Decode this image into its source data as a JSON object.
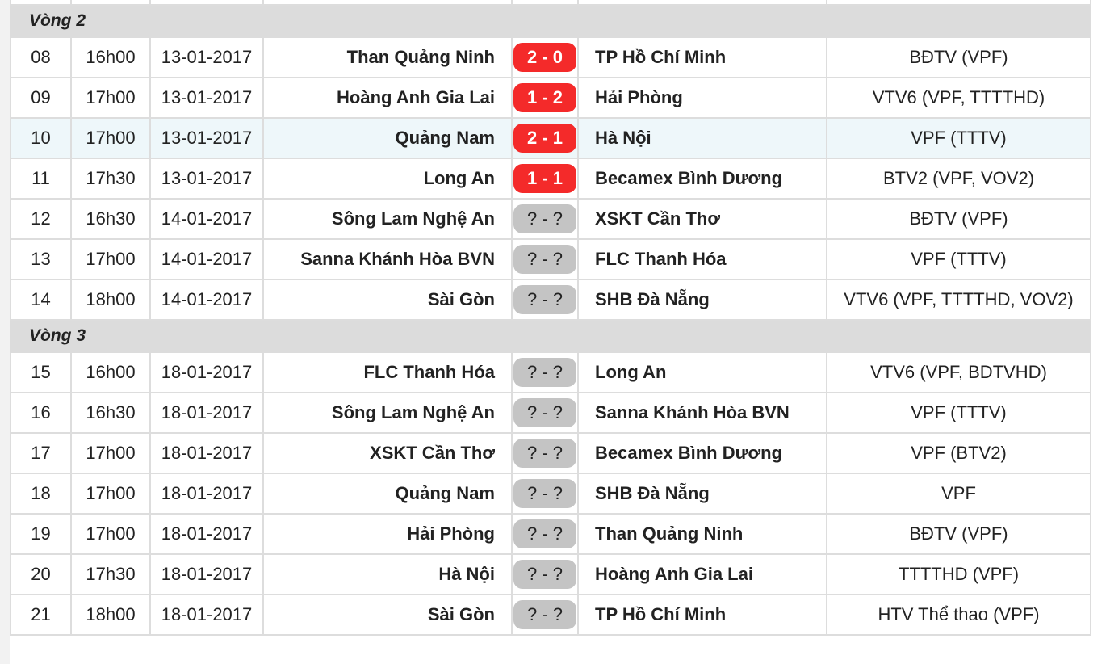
{
  "colors": {
    "played_badge": "#f42a2a",
    "pending_badge": "#c4c4c4",
    "round_header": "#dcdcdc",
    "highlight_row": "#eef7fa"
  },
  "rounds": [
    {
      "label": "Vòng 2",
      "matches": [
        {
          "no": "08",
          "time": "16h00",
          "date": "13-01-2017",
          "home": "Than Quảng Ninh",
          "score": "2 - 0",
          "played": true,
          "away": "TP Hồ Chí Minh",
          "tv": "BĐTV (VPF)"
        },
        {
          "no": "09",
          "time": "17h00",
          "date": "13-01-2017",
          "home": "Hoàng Anh Gia Lai",
          "score": "1 - 2",
          "played": true,
          "away": "Hải Phòng",
          "tv": "VTV6 (VPF, TTTTHD)"
        },
        {
          "no": "10",
          "time": "17h00",
          "date": "13-01-2017",
          "home": "Quảng Nam",
          "score": "2 - 1",
          "played": true,
          "away": "Hà Nội",
          "tv": "VPF (TTTV)",
          "highlighted": true
        },
        {
          "no": "11",
          "time": "17h30",
          "date": "13-01-2017",
          "home": "Long An",
          "score": "1 - 1",
          "played": true,
          "away": "Becamex Bình Dương",
          "tv": "BTV2 (VPF, VOV2)"
        },
        {
          "no": "12",
          "time": "16h30",
          "date": "14-01-2017",
          "home": "Sông Lam Nghệ An",
          "score": "? - ?",
          "played": false,
          "away": "XSKT Cần Thơ",
          "tv": "BĐTV (VPF)"
        },
        {
          "no": "13",
          "time": "17h00",
          "date": "14-01-2017",
          "home": "Sanna Khánh Hòa BVN",
          "score": "? - ?",
          "played": false,
          "away": "FLC Thanh Hóa",
          "tv": "VPF (TTTV)"
        },
        {
          "no": "14",
          "time": "18h00",
          "date": "14-01-2017",
          "home": "Sài Gòn",
          "score": "? - ?",
          "played": false,
          "away": "SHB Đà Nẵng",
          "tv": "VTV6 (VPF, TTTTHD, VOV2)"
        }
      ]
    },
    {
      "label": "Vòng 3",
      "matches": [
        {
          "no": "15",
          "time": "16h00",
          "date": "18-01-2017",
          "home": "FLC Thanh Hóa",
          "score": "? - ?",
          "played": false,
          "away": "Long An",
          "tv": "VTV6 (VPF, BDTVHD)"
        },
        {
          "no": "16",
          "time": "16h30",
          "date": "18-01-2017",
          "home": "Sông Lam Nghệ An",
          "score": "? - ?",
          "played": false,
          "away": "Sanna Khánh Hòa BVN",
          "tv": "VPF (TTTV)"
        },
        {
          "no": "17",
          "time": "17h00",
          "date": "18-01-2017",
          "home": "XSKT Cần Thơ",
          "score": "? - ?",
          "played": false,
          "away": "Becamex Bình Dương",
          "tv": "VPF (BTV2)"
        },
        {
          "no": "18",
          "time": "17h00",
          "date": "18-01-2017",
          "home": "Quảng Nam",
          "score": "? - ?",
          "played": false,
          "away": "SHB Đà Nẵng",
          "tv": "VPF"
        },
        {
          "no": "19",
          "time": "17h00",
          "date": "18-01-2017",
          "home": "Hải Phòng",
          "score": "? - ?",
          "played": false,
          "away": "Than Quảng Ninh",
          "tv": "BĐTV (VPF)"
        },
        {
          "no": "20",
          "time": "17h30",
          "date": "18-01-2017",
          "home": "Hà Nội",
          "score": "? - ?",
          "played": false,
          "away": "Hoàng Anh Gia Lai",
          "tv": "TTTTHD (VPF)"
        },
        {
          "no": "21",
          "time": "18h00",
          "date": "18-01-2017",
          "home": "Sài Gòn",
          "score": "? - ?",
          "played": false,
          "away": "TP Hồ Chí Minh",
          "tv": "HTV Thể thao (VPF)"
        }
      ]
    }
  ]
}
